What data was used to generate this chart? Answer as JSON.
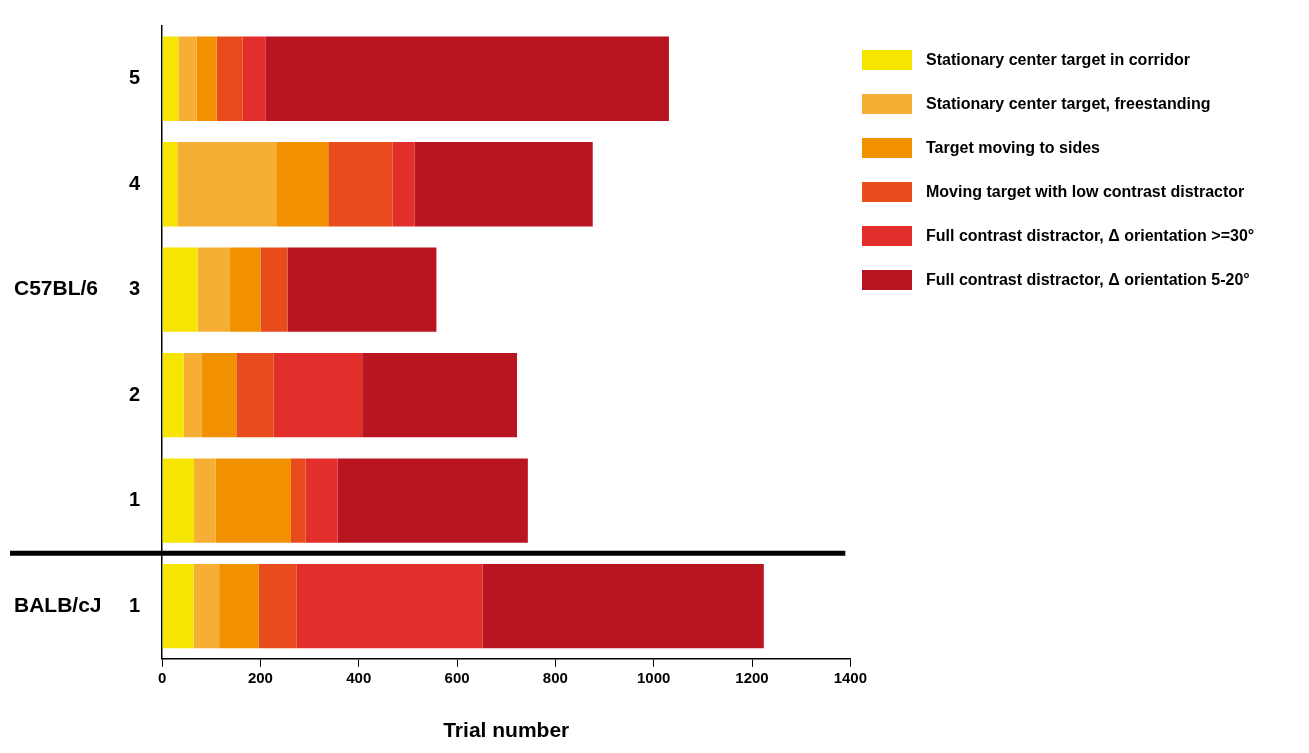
{
  "chart_data": {
    "type": "bar",
    "orientation": "horizontal",
    "stacked": true,
    "xlabel": "Trial number",
    "categories": [
      "5",
      "4",
      "3",
      "2",
      "1",
      "1"
    ],
    "series": [
      {
        "name": "Stationary center target in corridor",
        "color": "#f5e500",
        "values": [
          33,
          31,
          72,
          44,
          65,
          64
        ]
      },
      {
        "name": "Stationary center target, freestanding",
        "color": "#f6ae35",
        "values": [
          37,
          201,
          66,
          37,
          44,
          52
        ]
      },
      {
        "name": "Target moving to sides",
        "color": "#f29100",
        "values": [
          41,
          106,
          62,
          70,
          153,
          80
        ]
      },
      {
        "name": "Moving target with low contrast distractor",
        "color": "#e84b1c",
        "values": [
          53,
          131,
          55,
          76,
          30,
          77
        ]
      },
      {
        "name": "Full contrast distractor, Δ orientation >=30°",
        "color": "#e22f2b",
        "values": [
          46,
          45,
          0,
          180,
          65,
          379
        ]
      },
      {
        "name": "Full contrast distractor, Δ orientation 5-20°",
        "color": "#b91521",
        "values": [
          821,
          362,
          303,
          315,
          387,
          572
        ]
      }
    ],
    "xlim": [
      0,
      1400
    ],
    "xticks": [
      0,
      200,
      400,
      600,
      800,
      1000,
      1200,
      1400
    ],
    "annotations": [
      "C57BL/6",
      "BALB/cJ"
    ],
    "legend": "right",
    "grid": false
  }
}
